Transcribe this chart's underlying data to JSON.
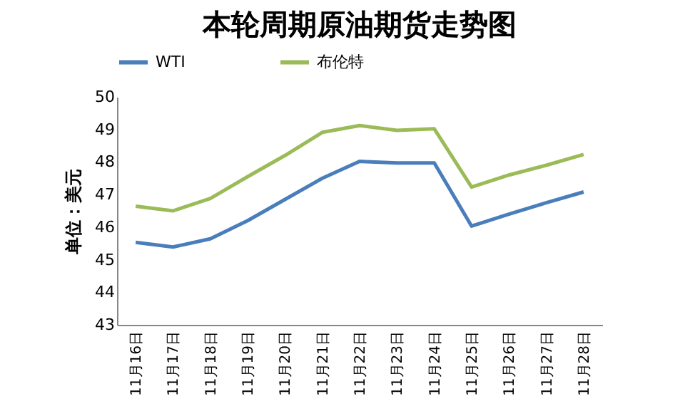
{
  "chart_data": {
    "type": "line",
    "title": "本轮周期原油期货走势图",
    "ylabel": "单位：美元",
    "categories": [
      "11月16日",
      "11月17日",
      "11月18日",
      "11月19日",
      "11月20日",
      "11月21日",
      "11月22日",
      "11月23日",
      "11月24日",
      "11月25日",
      "11月26日",
      "11月27日",
      "11月28日"
    ],
    "series": [
      {
        "name": "WTI",
        "color": "#4a7ebb",
        "values": [
          45.53,
          45.39,
          45.64,
          46.2,
          46.85,
          47.5,
          48.02,
          47.97,
          47.97,
          46.03,
          46.4,
          46.75,
          47.08
        ]
      },
      {
        "name": "布伦特",
        "color": "#9bbb59",
        "values": [
          46.64,
          46.5,
          46.88,
          47.55,
          48.2,
          48.91,
          49.12,
          48.97,
          49.02,
          47.23,
          47.6,
          47.9,
          48.23
        ]
      }
    ],
    "ylim": [
      43,
      50
    ],
    "yticks": [
      43,
      44,
      45,
      46,
      47,
      48,
      49,
      50
    ],
    "grid": false,
    "legend": "top",
    "marker": "none",
    "line_style": "solid"
  }
}
